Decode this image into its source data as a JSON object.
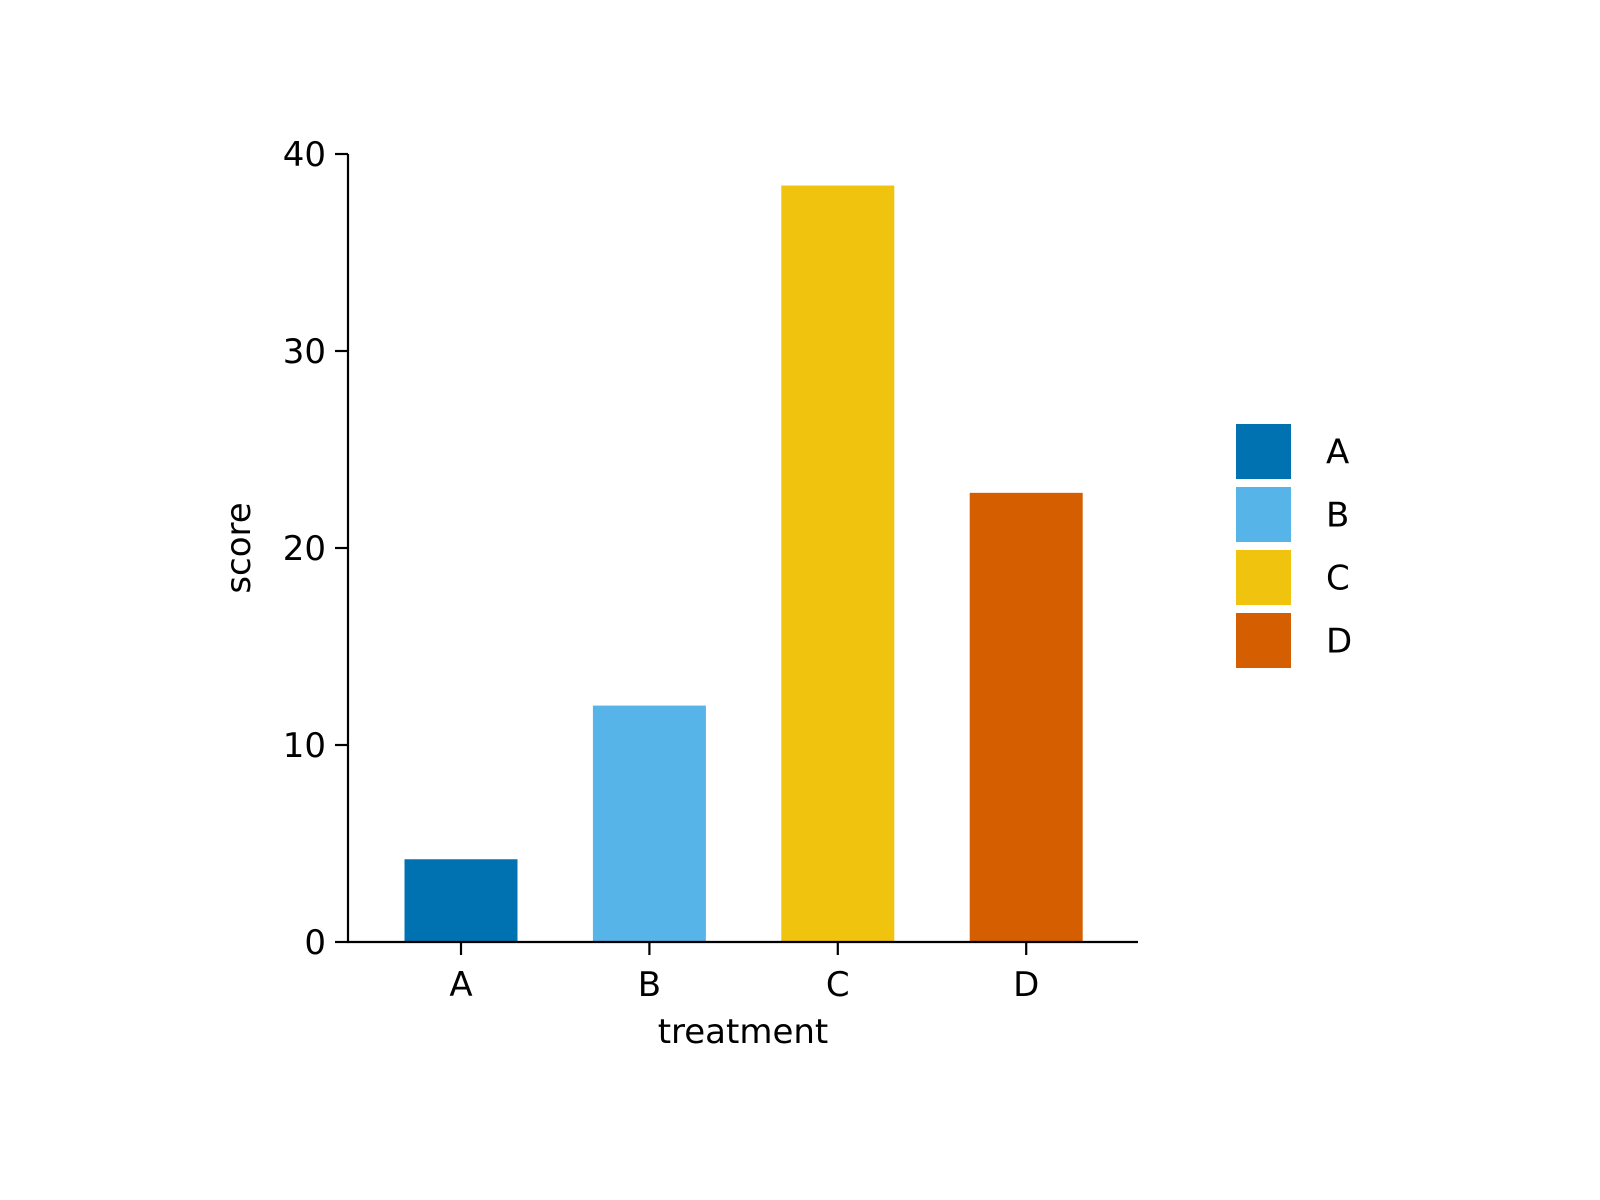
{
  "chart_data": {
    "type": "bar",
    "categories": [
      "A",
      "B",
      "C",
      "D"
    ],
    "values": [
      4.2,
      12.0,
      38.4,
      22.8
    ],
    "colors": [
      "#0072B2",
      "#56B4E9",
      "#F0C30F",
      "#D55E00"
    ],
    "xlabel": "treatment",
    "ylabel": "score",
    "ylim": [
      0,
      40
    ],
    "yticks": [
      0,
      10,
      20,
      30,
      40
    ],
    "grid": false,
    "legend": {
      "placement": "right",
      "entries": [
        "A",
        "B",
        "C",
        "D"
      ]
    }
  }
}
